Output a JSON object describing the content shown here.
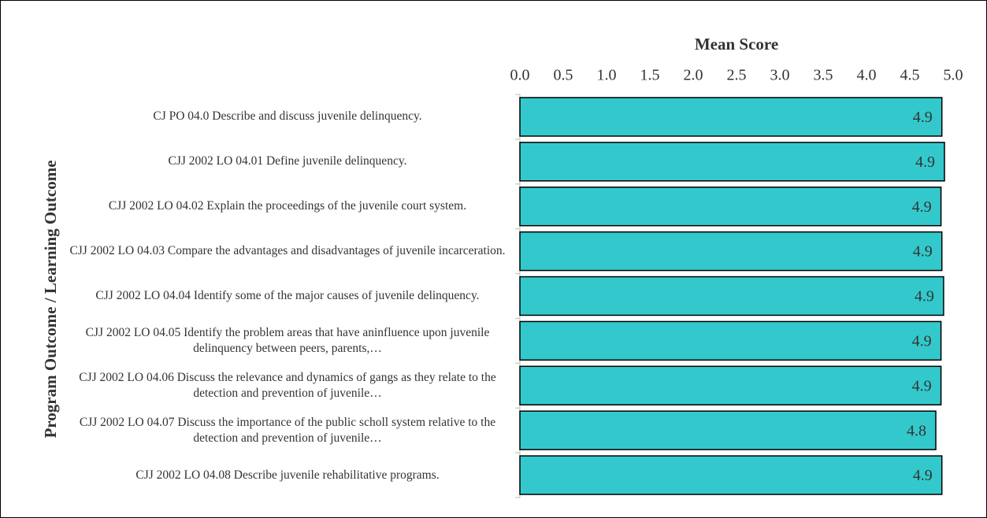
{
  "chart_data": {
    "type": "barh",
    "title": "Mean Score",
    "y_label": "Program Outcome / Learning Outcome",
    "categories": [
      "CJ PO 04.0 Describe and discuss juvenile delinquency.",
      "CJJ 2002 LO 04.01 Define juvenile delinquency.",
      "CJJ 2002 LO 04.02 Explain the proceedings of the juvenile court system.",
      "CJJ 2002 LO 04.03 Compare the advantages and disadvantages of juvenile incarceration.",
      "CJJ 2002 LO 04.04 Identify some of the major causes of juvenile delinquency.",
      "CJJ 2002 LO 04.05 Identify the problem areas that have aninfluence upon juvenile delinquency between peers, parents,…",
      "CJJ 2002 LO 04.06 Discuss the relevance and dynamics of gangs as they relate to the detection and prevention of juvenile…",
      "CJJ 2002 LO 04.07 Discuss the importance of the public scholl system relative to the detection and prevention of juvenile…",
      "CJJ 2002 LO 04.08 Describe juvenile rehabilitative programs."
    ],
    "values": [
      4.87,
      4.9,
      4.86,
      4.87,
      4.89,
      4.86,
      4.86,
      4.8,
      4.87
    ],
    "value_labels": [
      "4.9",
      "4.9",
      "4.9",
      "4.9",
      "4.9",
      "4.9",
      "4.9",
      "4.8",
      "4.9"
    ],
    "color": "#33c9cc",
    "xlim": [
      0,
      5
    ],
    "xticks": [
      {
        "value": 0,
        "label": "0.0"
      },
      0.5,
      {
        "value": 1,
        "label": "1.0"
      },
      1.5,
      {
        "value": 2,
        "label": "2.0"
      },
      2.5,
      {
        "value": 3,
        "label": "3.0"
      },
      3.5,
      {
        "value": 4,
        "label": "4.0"
      },
      4.5,
      {
        "value": 5,
        "label": "5.0"
      }
    ]
  }
}
